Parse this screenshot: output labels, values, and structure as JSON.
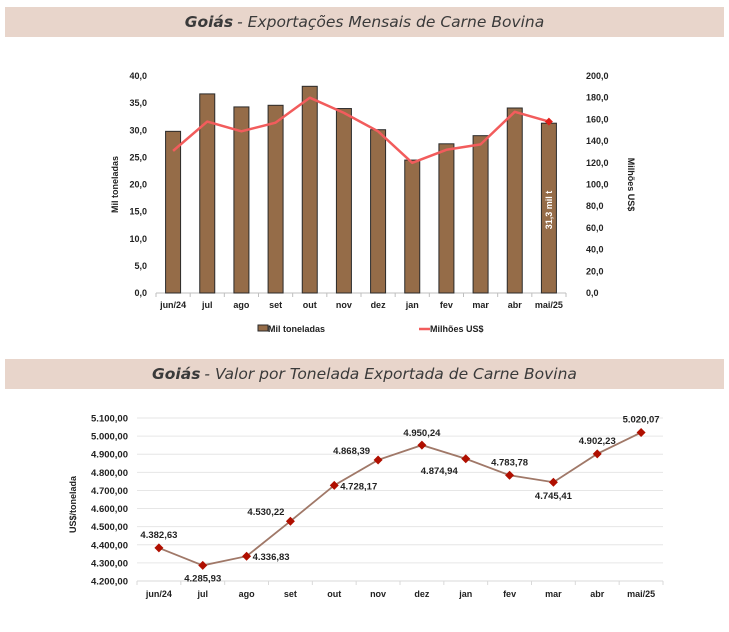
{
  "colors": {
    "banner_bg": "#e8d5cb",
    "bar": "#956c48",
    "bar_border": "#2a2a2a",
    "line1": "#f25c5c",
    "line2": "#a07868",
    "marker": "#b00f00",
    "grid": "#e6e6e6"
  },
  "banners": {
    "first": {
      "bold": "Goiás",
      "rest": "- Exportações Mensais de Carne Bovina"
    },
    "second": {
      "bold": "Goiás",
      "rest": "- Valor por Tonelada Exportada de Carne Bovina"
    }
  },
  "chart_data": [
    {
      "type": "bar",
      "title": "Goiás - Exportações Mensais de Carne Bovina",
      "categories": [
        "jun/24",
        "jul",
        "ago",
        "set",
        "out",
        "nov",
        "dez",
        "jan",
        "fev",
        "mar",
        "abr",
        "mai/25"
      ],
      "series": [
        {
          "name": "Mil toneladas",
          "type": "bar",
          "axis": "left",
          "values": [
            29.8,
            36.7,
            34.3,
            34.6,
            38.1,
            34.0,
            30.1,
            24.5,
            27.5,
            29.0,
            34.1,
            31.3
          ]
        },
        {
          "name": "Milhões US$",
          "type": "line",
          "axis": "right",
          "values": [
            131,
            158,
            149,
            157,
            180,
            166,
            149,
            120,
            132,
            137,
            167,
            158
          ]
        }
      ],
      "ylabel": "Mil toneladas",
      "y2label": "Milhões US$",
      "ylim": [
        0,
        40
      ],
      "y2lim": [
        0,
        200
      ],
      "yticks": [
        "0,0",
        "5,0",
        "10,0",
        "15,0",
        "20,0",
        "25,0",
        "30,0",
        "35,0",
        "40,0"
      ],
      "y2ticks": [
        "0,0",
        "20,0",
        "40,0",
        "60,0",
        "80,0",
        "100,0",
        "120,0",
        "140,0",
        "160,0",
        "180,0",
        "200,0"
      ],
      "annotation": "31,3 mil t",
      "legend": [
        "Mil toneladas",
        "Milhões US$"
      ],
      "legend_position": "bottom",
      "grid": false
    },
    {
      "type": "line",
      "title": "Goiás - Valor por Tonelada Exportada de Carne Bovina",
      "categories": [
        "jun/24",
        "jul",
        "ago",
        "set",
        "out",
        "nov",
        "dez",
        "jan",
        "fev",
        "mar",
        "abr",
        "mai/25"
      ],
      "series": [
        {
          "name": "US$/tonelada",
          "values": [
            4382.63,
            4285.93,
            4336.83,
            4530.22,
            4728.17,
            4868.39,
            4950.24,
            4874.94,
            4783.78,
            4745.41,
            4902.23,
            5020.07
          ],
          "labels": [
            "4.382,63",
            "4.285,93",
            "4.336,83",
            "4.530,22",
            "4.728,17",
            "4.868,39",
            "4.950,24",
            "4.874,94",
            "4.783,78",
            "4.745,41",
            "4.902,23",
            "5.020,07"
          ]
        }
      ],
      "ylabel": "US$/tonelada",
      "ylim": [
        4200,
        5100
      ],
      "yticks": [
        "4.200,00",
        "4.300,00",
        "4.400,00",
        "4.500,00",
        "4.600,00",
        "4.700,00",
        "4.800,00",
        "4.900,00",
        "5.000,00",
        "5.100,00"
      ],
      "grid": true
    }
  ]
}
